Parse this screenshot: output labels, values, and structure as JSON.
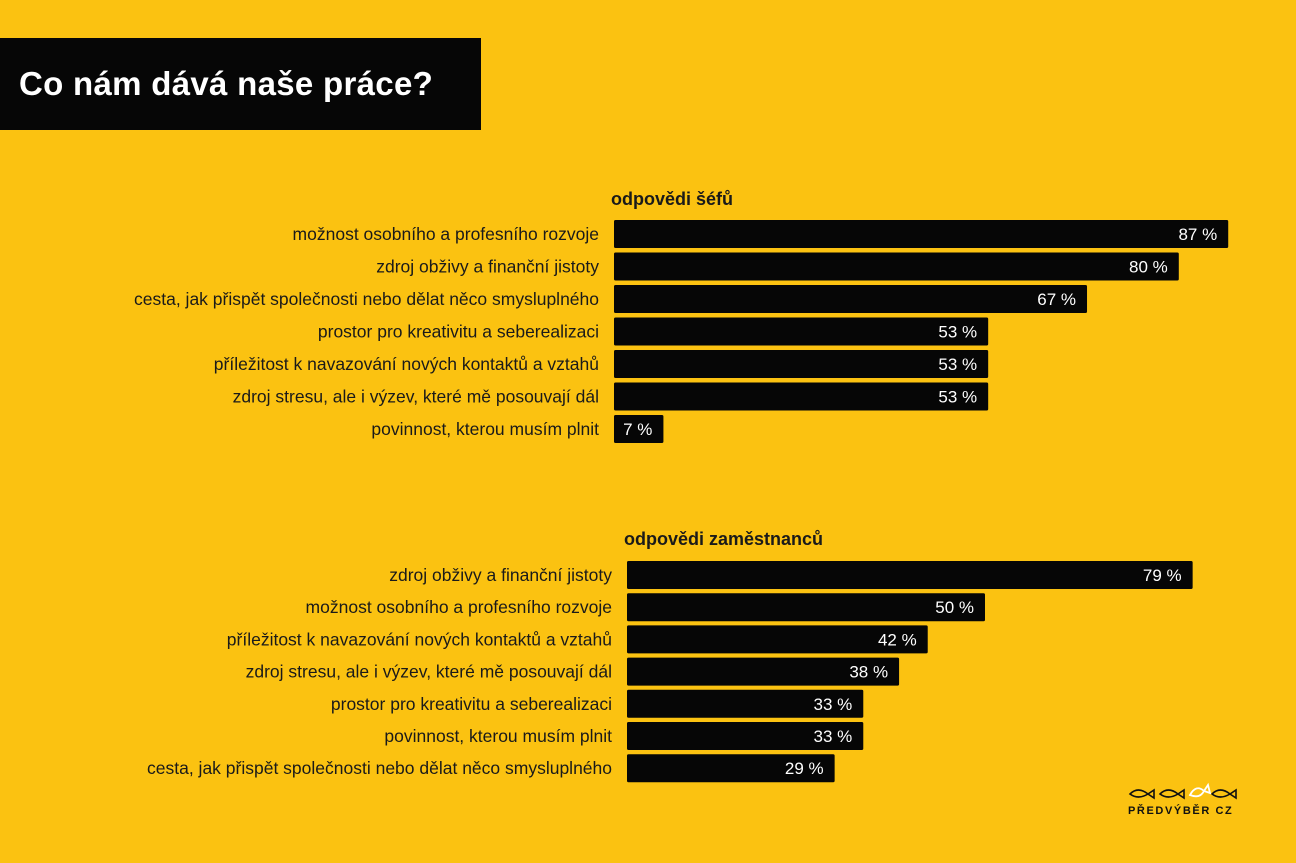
{
  "title": "Co nám dává naše práce?",
  "colors": {
    "background": "#fbc211",
    "bar": "#060606",
    "bar_label": "#ffffff",
    "text": "#1a1a1a"
  },
  "logo": {
    "text": "PŘEDVÝBĚR CZ",
    "icon": "three-fish-icon"
  },
  "chart_data": [
    {
      "type": "bar",
      "orientation": "horizontal",
      "title": "odpovědi šéfů",
      "categories": [
        "možnost osobního a profesního rozvoje",
        "zdroj obživy a finanční jistoty",
        "cesta, jak přispět společnosti nebo dělat něco smysluplného",
        "prostor pro kreativitu a seberealizaci",
        "příležitost k navazování nových kontaktů a vztahů",
        "zdroj stresu, ale i výzev, které mě posouvají dál",
        "povinnost, kterou musím plnit"
      ],
      "values": [
        87,
        80,
        67,
        53,
        53,
        53,
        7
      ],
      "labels": [
        "87 %",
        "80 %",
        "67 %",
        "53 %",
        "53 %",
        "53 %",
        "7 %"
      ],
      "unit": "%",
      "xlim": [
        0,
        100
      ]
    },
    {
      "type": "bar",
      "orientation": "horizontal",
      "title": "odpovědi zaměstnanců",
      "categories": [
        "zdroj obživy a finanční jistoty",
        "možnost osobního a profesního rozvoje",
        "příležitost k navazování nových kontaktů a vztahů",
        "zdroj stresu, ale i výzev, které mě posouvají dál",
        "prostor pro kreativitu a seberealizaci",
        "povinnost, kterou musím plnit",
        "cesta, jak přispět společnosti nebo dělat něco smysluplného"
      ],
      "values": [
        79,
        50,
        42,
        38,
        33,
        33,
        29
      ],
      "labels": [
        "79 %",
        "50 %",
        "42 %",
        "38 %",
        "33 %",
        "33 %",
        "29 %"
      ],
      "unit": "%",
      "xlim": [
        0,
        100
      ]
    }
  ]
}
